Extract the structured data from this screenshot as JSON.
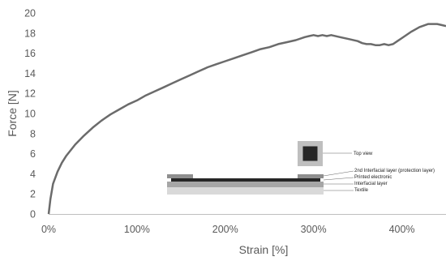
{
  "chart_data": {
    "type": "line",
    "xlabel": "Strain [%]",
    "ylabel": "Force [N]",
    "xlim": [
      0,
      450
    ],
    "ylim": [
      0,
      20
    ],
    "x_ticks": [
      0,
      100,
      200,
      300,
      400
    ],
    "x_tick_labels": [
      "0%",
      "100%",
      "200%",
      "300%",
      "400%"
    ],
    "y_ticks": [
      0,
      2,
      4,
      6,
      8,
      10,
      12,
      14,
      16,
      18,
      20
    ],
    "y_tick_labels": [
      "0",
      "2",
      "4",
      "6",
      "8",
      "10",
      "12",
      "14",
      "16",
      "18",
      "20"
    ],
    "grid": false,
    "series": [
      {
        "color": "#6b6b6b",
        "x": [
          0,
          2,
          5,
          10,
          15,
          20,
          30,
          40,
          50,
          60,
          70,
          80,
          90,
          100,
          110,
          120,
          130,
          140,
          150,
          160,
          170,
          180,
          190,
          200,
          210,
          220,
          230,
          240,
          250,
          260,
          270,
          280,
          290,
          295,
          300,
          305,
          310,
          315,
          320,
          330,
          340,
          350,
          355,
          360,
          365,
          370,
          375,
          380,
          385,
          390,
          395,
          400,
          410,
          420,
          430,
          440,
          445,
          450
        ],
        "y": [
          0,
          1.5,
          3.0,
          4.2,
          5.1,
          5.8,
          6.9,
          7.8,
          8.6,
          9.3,
          9.9,
          10.4,
          10.9,
          11.3,
          11.8,
          12.2,
          12.6,
          13.0,
          13.4,
          13.8,
          14.2,
          14.6,
          14.9,
          15.2,
          15.5,
          15.8,
          16.1,
          16.4,
          16.6,
          16.9,
          17.1,
          17.3,
          17.6,
          17.7,
          17.8,
          17.7,
          17.8,
          17.7,
          17.8,
          17.6,
          17.4,
          17.2,
          17.0,
          16.9,
          16.9,
          16.8,
          16.8,
          16.9,
          16.8,
          16.9,
          17.2,
          17.5,
          18.1,
          18.6,
          18.9,
          18.9,
          18.8,
          18.7
        ]
      }
    ],
    "inset": {
      "labels": [
        "Top view",
        "2nd Interfacial layer (protection layer)",
        "Printed electronic",
        "Interfacial layer",
        "Textile"
      ],
      "colors": {
        "textile": "#d9d9d9",
        "interfacial": "#a6a6a6",
        "printed": "#262626",
        "protection": "#8f8f8f",
        "top_outer": "#bfbfbf",
        "top_inner": "#262626"
      }
    }
  }
}
